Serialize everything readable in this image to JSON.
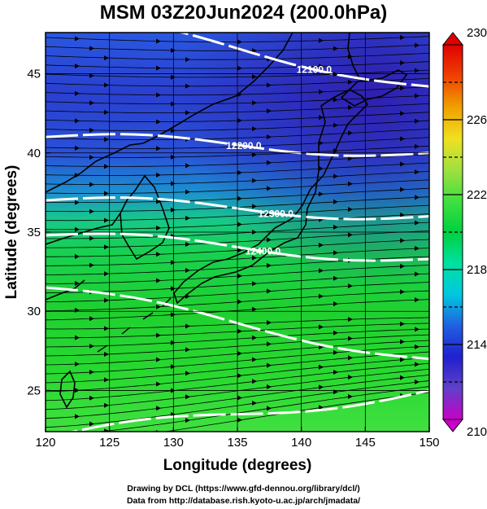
{
  "title": "MSM 03Z20Jun2024 (200.0hPa)",
  "xaxis": {
    "label": "Longitude (degrees)",
    "min": 120,
    "max": 150,
    "ticks": [
      120,
      125,
      130,
      135,
      140,
      145,
      150
    ]
  },
  "yaxis": {
    "label": "Latitude  (degrees)",
    "min": 22.4,
    "max": 47.6,
    "ticks": [
      25,
      30,
      35,
      40,
      45
    ]
  },
  "colorbar": {
    "min": 210,
    "max": 230,
    "ticks": [
      210,
      214,
      218,
      222,
      226,
      230
    ],
    "dashed_levels": [
      212,
      216,
      220,
      224,
      228
    ],
    "stops": [
      "#c800c8",
      "#6040c8",
      "#2020d0",
      "#2060e0",
      "#00c8e0",
      "#00e0a0",
      "#00d040",
      "#40e040",
      "#a0e040",
      "#f0e020",
      "#f0a000",
      "#f04000",
      "#e00000"
    ]
  },
  "contours": [
    {
      "label": "12100.0",
      "lat_west": 49.0,
      "lat_east": 44.2,
      "label_lon": 141.0
    },
    {
      "label": "12200.0",
      "lat_west": 41.0,
      "lat_east": 40.0,
      "label_lon": 135.5
    },
    {
      "label": "12300.0",
      "lat_west": 37.0,
      "lat_east": 36.0,
      "label_lon": 138.0
    },
    {
      "label": "12400.0",
      "lat_west": 34.8,
      "lat_east": 33.3,
      "label_lon": 137.0
    },
    {
      "label": "",
      "lat_west": 31.5,
      "lat_east": 27.0,
      "label_lon": 0
    },
    {
      "label": "",
      "lat_west": 22.0,
      "lat_east": 25.0,
      "label_lon": 0
    }
  ],
  "credits": {
    "line1": "Drawing by DCL (https://www.gfd-dennou.org/library/dcl/)",
    "line2": "Data from http://database.rish.kyoto-u.ac.jp/arch/jmadata/"
  }
}
